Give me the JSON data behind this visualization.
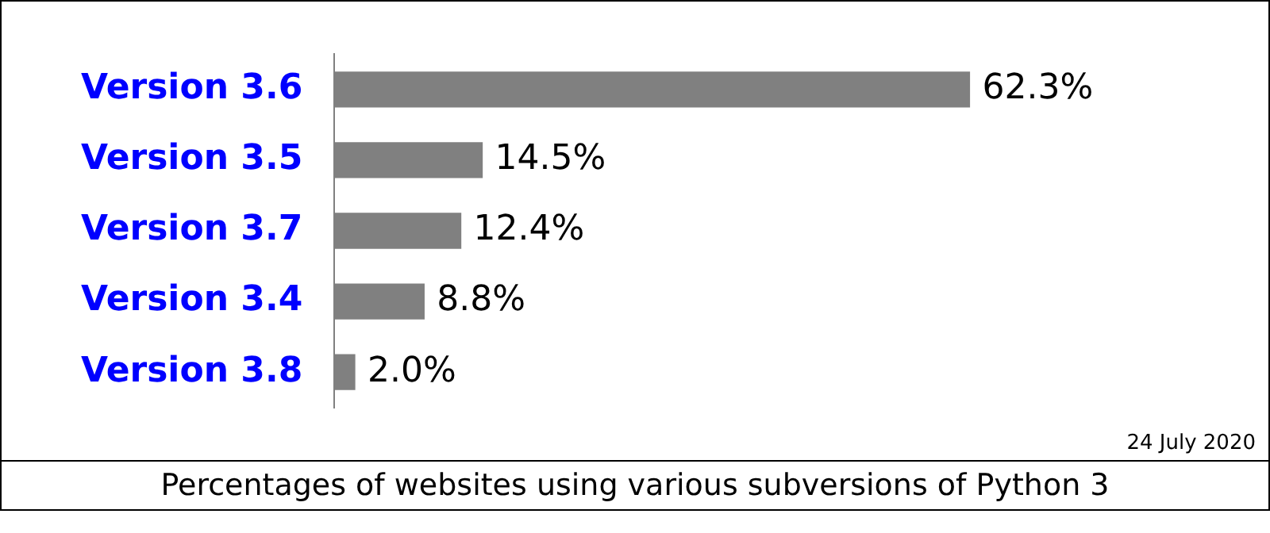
{
  "chart_data": {
    "type": "bar",
    "orientation": "horizontal",
    "title": "Percentages of websites using various subversions of Python 3",
    "categories": [
      "Version 3.6",
      "Version 3.5",
      "Version 3.7",
      "Version 3.4",
      "Version 3.8"
    ],
    "values": [
      62.3,
      14.5,
      12.4,
      8.8,
      2.0
    ],
    "value_labels": [
      "62.3%",
      "14.5%",
      "12.4%",
      "8.8%",
      "2.0%"
    ],
    "color": "#808080",
    "annotations": [
      "24 July 2020"
    ]
  }
}
